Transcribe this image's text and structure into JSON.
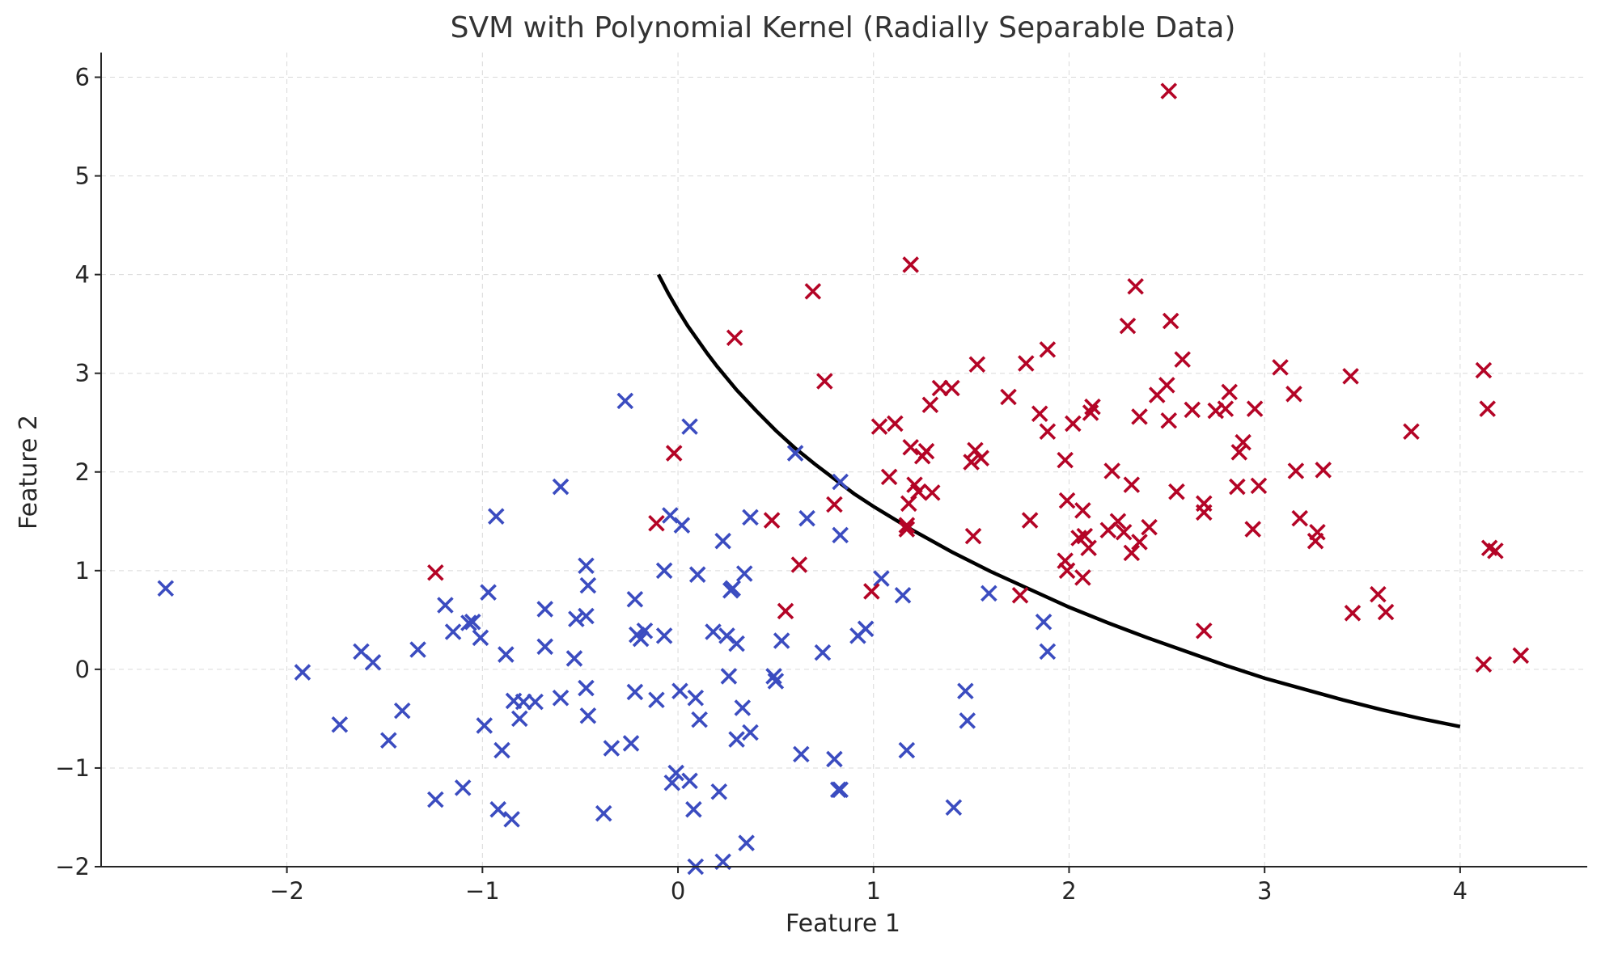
{
  "chart_data": {
    "type": "scatter",
    "title": "SVM with Polynomial Kernel (Radially Separable Data)",
    "xlabel": "Feature 1",
    "ylabel": "Feature 2",
    "xlim": [
      -2.95,
      4.65
    ],
    "ylim": [
      -2.0,
      6.25
    ],
    "xticks": [
      -2,
      -1,
      0,
      1,
      2,
      3,
      4
    ],
    "yticks": [
      -2,
      -1,
      0,
      1,
      2,
      3,
      4,
      5,
      6
    ],
    "grid": true,
    "marker": "x",
    "colors": {
      "class_0": "#3b4cc0",
      "class_1": "#b40426",
      "boundary": "#000000"
    },
    "series": [
      {
        "color": "#3b4cc0",
        "points": [
          [
            -2.62,
            0.82
          ],
          [
            -1.92,
            -0.03
          ],
          [
            -1.73,
            -0.56
          ],
          [
            -1.62,
            0.18
          ],
          [
            -1.56,
            0.07
          ],
          [
            -1.48,
            -0.72
          ],
          [
            -1.41,
            -0.42
          ],
          [
            -1.33,
            0.2
          ],
          [
            -1.24,
            -1.32
          ],
          [
            -1.19,
            0.65
          ],
          [
            -1.15,
            0.38
          ],
          [
            -1.1,
            -1.2
          ],
          [
            -1.07,
            0.47
          ],
          [
            -1.05,
            0.48
          ],
          [
            -1.01,
            0.32
          ],
          [
            -0.99,
            -0.57
          ],
          [
            -0.97,
            0.78
          ],
          [
            -0.93,
            1.55
          ],
          [
            -0.92,
            -1.42
          ],
          [
            -0.9,
            -0.82
          ],
          [
            -0.88,
            0.15
          ],
          [
            -0.85,
            -1.52
          ],
          [
            -0.84,
            -0.32
          ],
          [
            -0.81,
            -0.5
          ],
          [
            -0.79,
            -0.33
          ],
          [
            -0.73,
            -0.33
          ],
          [
            -0.68,
            0.23
          ],
          [
            -0.68,
            0.61
          ],
          [
            -0.6,
            1.85
          ],
          [
            -0.6,
            -0.29
          ],
          [
            -0.53,
            0.11
          ],
          [
            -0.52,
            0.51
          ],
          [
            -0.47,
            1.05
          ],
          [
            -0.46,
            0.85
          ],
          [
            -0.47,
            0.54
          ],
          [
            -0.47,
            -0.19
          ],
          [
            -0.46,
            -0.47
          ],
          [
            -0.38,
            -1.46
          ],
          [
            -0.34,
            -0.8
          ],
          [
            -0.27,
            2.72
          ],
          [
            -0.24,
            -0.75
          ],
          [
            -0.22,
            0.71
          ],
          [
            -0.22,
            -0.23
          ],
          [
            -0.21,
            0.35
          ],
          [
            -0.19,
            0.31
          ],
          [
            -0.17,
            0.39
          ],
          [
            -0.11,
            -0.31
          ],
          [
            -0.07,
            1.0
          ],
          [
            -0.07,
            0.34
          ],
          [
            -0.04,
            1.56
          ],
          [
            -0.03,
            -1.15
          ],
          [
            -0.01,
            -1.05
          ],
          [
            0.01,
            -0.22
          ],
          [
            0.02,
            1.46
          ],
          [
            0.06,
            2.46
          ],
          [
            0.06,
            -1.13
          ],
          [
            0.08,
            -1.42
          ],
          [
            0.09,
            -0.29
          ],
          [
            0.1,
            0.96
          ],
          [
            0.11,
            -0.51
          ],
          [
            0.09,
            -2.0
          ],
          [
            0.18,
            0.38
          ],
          [
            0.21,
            -1.24
          ],
          [
            0.23,
            1.3
          ],
          [
            0.23,
            -1.95
          ],
          [
            0.26,
            -0.07
          ],
          [
            0.27,
            0.8
          ],
          [
            0.28,
            0.82
          ],
          [
            0.3,
            0.26
          ],
          [
            0.3,
            -0.71
          ],
          [
            0.33,
            -0.39
          ],
          [
            0.34,
            0.97
          ],
          [
            0.35,
            -1.76
          ],
          [
            0.37,
            -0.64
          ],
          [
            0.37,
            1.54
          ],
          [
            0.49,
            -0.07
          ],
          [
            0.5,
            -0.12
          ],
          [
            0.53,
            0.29
          ],
          [
            0.6,
            2.19
          ],
          [
            0.63,
            -0.86
          ],
          [
            0.66,
            1.53
          ],
          [
            0.74,
            0.17
          ],
          [
            0.8,
            -0.91
          ],
          [
            0.82,
            -1.22
          ],
          [
            0.83,
            -1.22
          ],
          [
            0.83,
            1.36
          ],
          [
            0.83,
            1.9
          ],
          [
            0.92,
            0.34
          ],
          [
            0.96,
            0.41
          ],
          [
            1.04,
            0.92
          ],
          [
            1.15,
            0.75
          ],
          [
            1.17,
            -0.82
          ],
          [
            1.41,
            -1.4
          ],
          [
            1.47,
            -0.22
          ],
          [
            1.48,
            -0.52
          ],
          [
            1.59,
            0.77
          ],
          [
            1.87,
            0.48
          ],
          [
            1.89,
            0.18
          ],
          [
            0.25,
            0.34
          ]
        ]
      },
      {
        "color": "#b40426",
        "points": [
          [
            -1.24,
            0.98
          ],
          [
            -0.11,
            1.48
          ],
          [
            -0.02,
            2.19
          ],
          [
            0.29,
            3.36
          ],
          [
            0.48,
            1.51
          ],
          [
            0.55,
            0.59
          ],
          [
            0.62,
            1.06
          ],
          [
            0.69,
            3.83
          ],
          [
            0.75,
            2.92
          ],
          [
            0.8,
            1.67
          ],
          [
            0.99,
            0.79
          ],
          [
            1.03,
            2.46
          ],
          [
            1.08,
            1.95
          ],
          [
            1.11,
            2.49
          ],
          [
            1.17,
            1.42
          ],
          [
            1.17,
            1.46
          ],
          [
            1.18,
            1.68
          ],
          [
            1.19,
            4.1
          ],
          [
            1.19,
            2.25
          ],
          [
            1.21,
            1.87
          ],
          [
            1.23,
            1.8
          ],
          [
            1.25,
            2.16
          ],
          [
            1.27,
            2.21
          ],
          [
            1.29,
            2.68
          ],
          [
            1.3,
            1.79
          ],
          [
            1.34,
            2.85
          ],
          [
            1.4,
            2.85
          ],
          [
            1.5,
            2.1
          ],
          [
            1.51,
            1.35
          ],
          [
            1.52,
            2.22
          ],
          [
            1.53,
            3.09
          ],
          [
            1.55,
            2.14
          ],
          [
            1.69,
            2.76
          ],
          [
            1.75,
            0.75
          ],
          [
            1.78,
            3.1
          ],
          [
            1.8,
            1.51
          ],
          [
            1.85,
            2.59
          ],
          [
            1.89,
            3.24
          ],
          [
            1.89,
            2.41
          ],
          [
            1.98,
            2.12
          ],
          [
            1.98,
            1.1
          ],
          [
            1.99,
            1.71
          ],
          [
            1.99,
            1.0
          ],
          [
            2.02,
            2.49
          ],
          [
            2.05,
            1.33
          ],
          [
            2.07,
            1.61
          ],
          [
            2.07,
            0.93
          ],
          [
            2.08,
            1.35
          ],
          [
            2.1,
            1.23
          ],
          [
            2.11,
            2.6
          ],
          [
            2.12,
            2.66
          ],
          [
            2.2,
            1.41
          ],
          [
            2.22,
            2.01
          ],
          [
            2.25,
            1.5
          ],
          [
            2.28,
            1.39
          ],
          [
            2.3,
            3.48
          ],
          [
            2.32,
            1.87
          ],
          [
            2.32,
            1.18
          ],
          [
            2.34,
            3.88
          ],
          [
            2.36,
            1.29
          ],
          [
            2.36,
            2.56
          ],
          [
            2.41,
            1.44
          ],
          [
            2.45,
            2.78
          ],
          [
            2.5,
            2.88
          ],
          [
            2.51,
            2.52
          ],
          [
            2.51,
            5.86
          ],
          [
            2.52,
            3.53
          ],
          [
            2.55,
            1.8
          ],
          [
            2.58,
            3.14
          ],
          [
            2.63,
            2.63
          ],
          [
            2.69,
            1.68
          ],
          [
            2.69,
            1.59
          ],
          [
            2.69,
            0.39
          ],
          [
            2.75,
            2.62
          ],
          [
            2.8,
            2.64
          ],
          [
            2.82,
            2.81
          ],
          [
            2.86,
            1.85
          ],
          [
            2.87,
            2.2
          ],
          [
            2.89,
            2.3
          ],
          [
            2.94,
            1.42
          ],
          [
            2.95,
            2.64
          ],
          [
            2.97,
            1.86
          ],
          [
            3.08,
            3.06
          ],
          [
            3.15,
            2.79
          ],
          [
            3.16,
            2.01
          ],
          [
            3.18,
            1.53
          ],
          [
            3.26,
            1.3
          ],
          [
            3.27,
            1.39
          ],
          [
            3.3,
            2.02
          ],
          [
            3.44,
            2.97
          ],
          [
            3.45,
            0.57
          ],
          [
            3.58,
            0.76
          ],
          [
            3.62,
            0.58
          ],
          [
            3.75,
            2.41
          ],
          [
            4.12,
            3.03
          ],
          [
            4.12,
            0.05
          ],
          [
            4.14,
            2.64
          ],
          [
            4.15,
            1.23
          ],
          [
            4.18,
            1.2
          ],
          [
            4.31,
            0.14
          ]
        ]
      }
    ],
    "boundary": {
      "x": [
        -0.1,
        -0.05,
        0.0,
        0.05,
        0.1,
        0.15,
        0.2,
        0.25,
        0.3,
        0.4,
        0.5,
        0.6,
        0.7,
        0.8,
        0.9,
        1.0,
        1.2,
        1.4,
        1.6,
        1.8,
        2.0,
        2.2,
        2.4,
        2.6,
        2.8,
        3.0,
        3.2,
        3.4,
        3.6,
        3.8,
        4.0
      ],
      "y": [
        4.0,
        3.81,
        3.64,
        3.48,
        3.34,
        3.2,
        3.07,
        2.95,
        2.83,
        2.62,
        2.42,
        2.24,
        2.08,
        1.93,
        1.78,
        1.65,
        1.41,
        1.19,
        0.99,
        0.81,
        0.63,
        0.47,
        0.32,
        0.18,
        0.04,
        -0.09,
        -0.2,
        -0.31,
        -0.41,
        -0.5,
        -0.58
      ]
    }
  }
}
